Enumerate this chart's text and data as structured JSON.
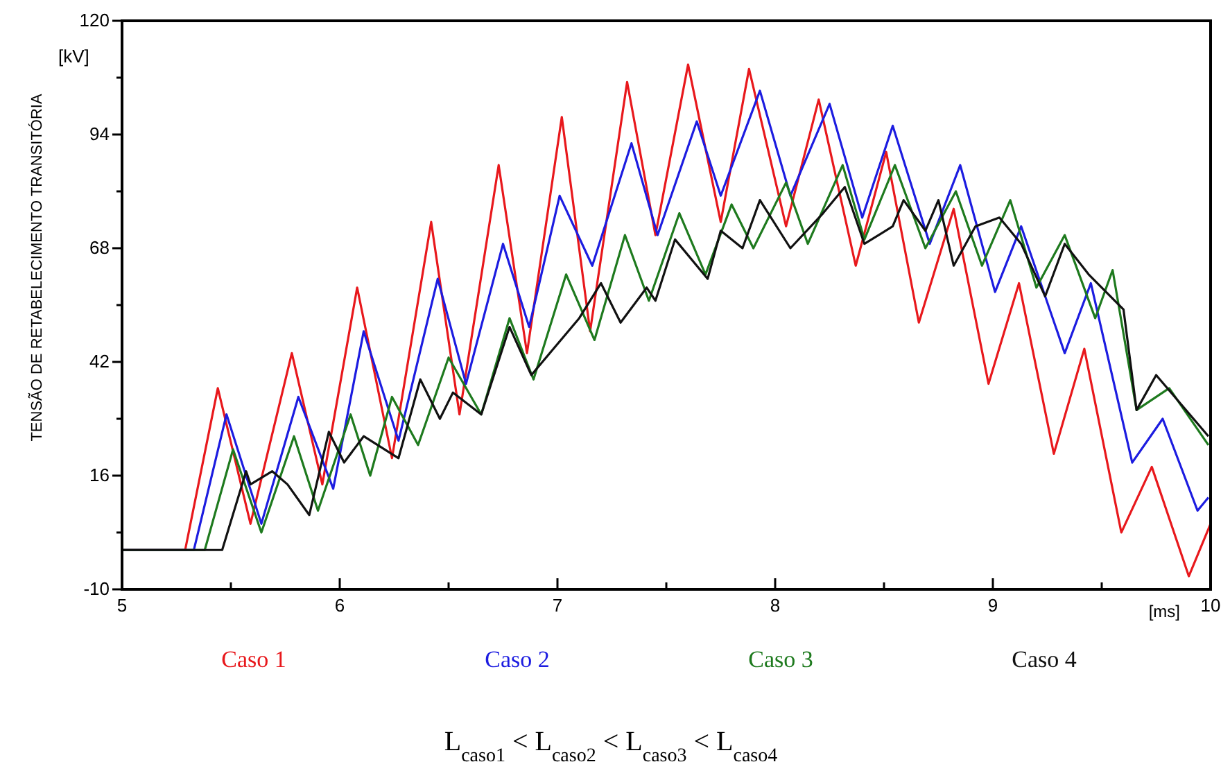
{
  "chart_data": {
    "type": "line",
    "ylabel": "TENSÃO DE RETABELECIMENTO TRANSITÓRIA",
    "xlabel": "[ms]",
    "annotations": [
      "[kV]",
      "L$_{caso1}$ < L$_{caso2}$ < L$_{caso3}$ < L$_{caso4}$"
    ],
    "xlim": [
      5,
      10
    ],
    "ylim": [
      -10,
      120
    ],
    "xticks": [
      5,
      {
        "value": 5.5,
        "label": null
      },
      6,
      {
        "value": 6.5,
        "label": null
      },
      7,
      {
        "value": 7.5,
        "label": null
      },
      8,
      {
        "value": 8.5,
        "label": null
      },
      9,
      {
        "value": 9.5,
        "label": null
      },
      10
    ],
    "yticks": [
      -10,
      {
        "value": 3,
        "label": null
      },
      16,
      {
        "value": 29,
        "label": null
      },
      42,
      {
        "value": 55,
        "label": null
      },
      68,
      {
        "value": 81,
        "label": null
      },
      94,
      {
        "value": 107,
        "label": null
      },
      120
    ],
    "grid": false,
    "legend": "bottom",
    "line_style": "solid",
    "marker": "none",
    "series": [
      {
        "name": "Caso 1",
        "color": "#e8181c",
        "x": [
          5,
          5.29,
          5.44,
          5.59,
          5.78,
          5.92,
          6.08,
          6.24,
          6.42,
          6.55,
          6.73,
          6.86,
          7.02,
          7.15,
          7.32,
          7.45,
          7.6,
          7.75,
          7.88,
          8.05,
          8.2,
          8.37,
          8.51,
          8.66,
          8.82,
          8.98,
          9.12,
          9.28,
          9.42,
          9.59,
          9.73,
          9.9,
          10
        ],
        "values": [
          -1,
          -1,
          36,
          5,
          44,
          14,
          59,
          20,
          74,
          30,
          87,
          44,
          98,
          49,
          106,
          71,
          110,
          74,
          109,
          73,
          102,
          64,
          90,
          51,
          77,
          37,
          60,
          21,
          45,
          3,
          18,
          -7,
          5
        ]
      },
      {
        "name": "Caso 2",
        "color": "#1c1ce0",
        "x": [
          5,
          5.33,
          5.48,
          5.64,
          5.81,
          5.97,
          6.11,
          6.27,
          6.45,
          6.58,
          6.75,
          6.87,
          7.01,
          7.16,
          7.34,
          7.46,
          7.64,
          7.75,
          7.93,
          8.07,
          8.25,
          8.4,
          8.54,
          8.71,
          8.85,
          9.01,
          9.13,
          9.33,
          9.45,
          9.64,
          9.78,
          9.94,
          9.99
        ],
        "values": [
          -1,
          -1,
          30,
          5,
          34,
          13,
          49,
          24,
          61,
          37,
          69,
          50,
          80,
          64,
          92,
          71,
          97,
          80,
          104,
          80,
          101,
          75,
          96,
          69,
          87,
          58,
          73,
          44,
          60,
          19,
          29,
          8,
          11
        ]
      },
      {
        "name": "Caso 3",
        "color": "#1e7a1e",
        "x": [
          5,
          5.38,
          5.51,
          5.64,
          5.79,
          5.9,
          6.05,
          6.14,
          6.24,
          6.36,
          6.5,
          6.65,
          6.78,
          6.89,
          7.04,
          7.17,
          7.31,
          7.42,
          7.56,
          7.68,
          7.8,
          7.9,
          8.05,
          8.15,
          8.31,
          8.41,
          8.55,
          8.69,
          8.83,
          8.95,
          9.08,
          9.2,
          9.33,
          9.47,
          9.55,
          9.66,
          9.81,
          9.99
        ],
        "values": [
          -1,
          -1,
          22,
          3,
          25,
          8,
          30,
          16,
          34,
          23,
          43,
          30,
          52,
          38,
          62,
          47,
          71,
          56,
          76,
          62,
          78,
          68,
          83,
          69,
          87,
          70,
          87,
          68,
          81,
          64,
          79,
          59,
          71,
          52,
          63,
          31,
          36,
          23
        ]
      },
      {
        "name": "Caso 4",
        "color": "#111111",
        "x": [
          5,
          5.46,
          5.57,
          5.59,
          5.69,
          5.76,
          5.86,
          5.95,
          6.02,
          6.11,
          6.27,
          6.37,
          6.46,
          6.52,
          6.65,
          6.78,
          6.88,
          7.1,
          7.2,
          7.29,
          7.41,
          7.45,
          7.54,
          7.69,
          7.75,
          7.85,
          7.93,
          8.07,
          8.22,
          8.32,
          8.41,
          8.54,
          8.59,
          8.69,
          8.75,
          8.82,
          8.92,
          9.03,
          9.13,
          9.24,
          9.33,
          9.44,
          9.6,
          9.66,
          9.75,
          9.99
        ],
        "values": [
          -1,
          -1,
          17,
          14,
          17,
          14,
          7,
          26,
          19,
          25,
          20,
          38,
          29,
          35,
          30,
          50,
          39,
          52,
          60,
          51,
          59,
          56,
          70,
          61,
          72,
          68,
          79,
          68,
          76,
          82,
          69,
          73,
          79,
          72,
          79,
          64,
          73,
          75,
          69,
          57,
          69,
          62,
          54,
          31,
          39,
          25
        ]
      }
    ]
  }
}
